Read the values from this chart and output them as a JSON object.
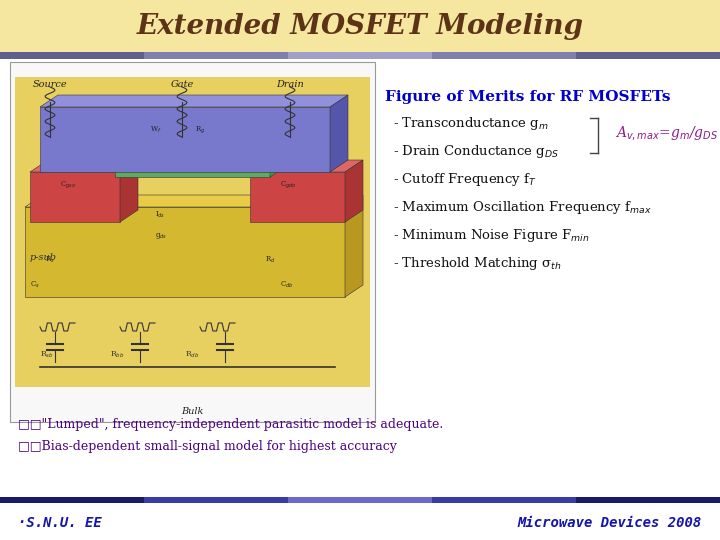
{
  "title": "Extended MOSFET Modeling",
  "title_color": "#5C3317",
  "title_bg_color": "#F5E6A0",
  "title_font_size": 20,
  "fig_bg_color": "#FFFFFF",
  "header_bar_colors": [
    "#9090B0",
    "#C0C0D8",
    "#E0E0F0"
  ],
  "figure_of_merits_title": "Figure of Merits for RF MOSFETs",
  "figure_of_merits_color": "#0000CC",
  "bullet_items_main": [
    "- Transconductance g",
    "- Drain Conductance g",
    "- Cutoff Frequency f",
    "- Maximum Oscillation Frequency f",
    "- Minimum Noise Figure F",
    "- Threshold Matching σ"
  ],
  "bullet_subscripts": [
    "m",
    "DS",
    "T",
    "max",
    "min",
    "th"
  ],
  "bullet_color": "#111111",
  "avmax_text_parts": [
    "A",
    "v,max",
    "=g",
    "m",
    "/g",
    "DS"
  ],
  "avmax_color": "#8B1A8B",
  "bullet1_text": "□□\"Lumped\", frequency-independent parasitic model is adequate.",
  "bullet2_text": "□□Bias-dependent small-signal model for highest accuracy",
  "bullets_color": "#4B0082",
  "footer_left": "·S.N.U. EE",
  "footer_right": "Microwave Devices 2008",
  "footer_color": "#1515AA",
  "footer_bar_gradient": [
    "#1A1A6A",
    "#3A3AAA",
    "#6A6ACA",
    "#3A3AAA",
    "#1A1A6A"
  ],
  "diagram_bg": "#F8F8F8",
  "substrate_color": "#E8D060",
  "gate_color": "#7878CC",
  "source_drain_color": "#CC4444",
  "channel_color": "#60AA60",
  "circuit_line_color": "#333333",
  "psub_label": "p-sub",
  "bulk_label": "Bulk",
  "source_label": "Source",
  "gate_label": "Gate",
  "drain_label": "Drain"
}
